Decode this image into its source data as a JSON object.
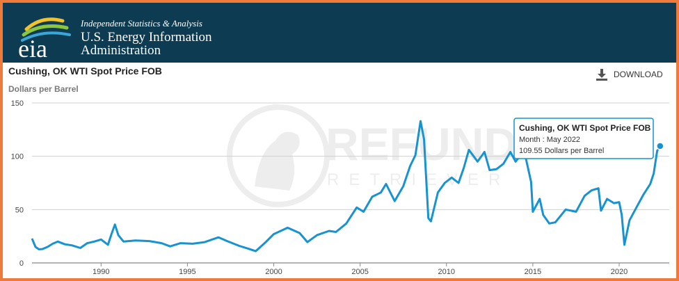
{
  "header": {
    "logo_text": "eia",
    "tagline": "Independent Statistics & Analysis",
    "agency_line1": "U.S. Energy Information",
    "agency_line2": "Administration",
    "bg_color": "#0d3b52"
  },
  "download": {
    "label": "DOWNLOAD",
    "icon": "download-icon"
  },
  "watermark": {
    "line1": "REFUND",
    "line2": "RETRIEVER"
  },
  "tooltip": {
    "series": "Cushing, OK WTI Spot Price FOB",
    "month": "Month : May 2022",
    "value": "109.55 Dollars per Barrel"
  },
  "chart_data": {
    "type": "line",
    "title": "Cushing, OK WTI Spot Price FOB",
    "ylabel": "Dollars per Barrel",
    "xlim": [
      1986.0,
      2022.9
    ],
    "ylim": [
      0,
      150
    ],
    "yticks": [
      0,
      50,
      100,
      150
    ],
    "xticks": [
      1990,
      1995,
      2000,
      2005,
      2010,
      2015,
      2020
    ],
    "grid": true,
    "line_color": "#1793d1",
    "series": [
      {
        "x": [
          1986.0,
          1986.2,
          1986.4,
          1986.6,
          1986.9,
          1987.2,
          1987.5,
          1987.9,
          1988.3,
          1988.8,
          1989.2,
          1989.6,
          1990.0,
          1990.4,
          1990.6,
          1990.8,
          1991.0,
          1991.3,
          1992.0,
          1992.8,
          1993.5,
          1994.0,
          1994.6,
          1995.3,
          1996.0,
          1996.8,
          1997.3,
          1998.0,
          1998.5,
          1998.95,
          1999.5,
          2000.0,
          2000.4,
          2000.8,
          2001.5,
          2001.95,
          2002.5,
          2003.2,
          2003.6,
          2004.2,
          2004.8,
          2005.2,
          2005.7,
          2006.2,
          2006.5,
          2007.0,
          2007.5,
          2007.9,
          2008.2,
          2008.5,
          2008.7,
          2008.95,
          2009.1,
          2009.5,
          2009.9,
          2010.3,
          2010.7,
          2011.0,
          2011.3,
          2011.8,
          2012.2,
          2012.5,
          2012.9,
          2013.3,
          2013.7,
          2014.0,
          2014.5,
          2014.9,
          2015.0,
          2015.4,
          2015.6,
          2015.95,
          2016.3,
          2016.9,
          2017.5,
          2018.0,
          2018.4,
          2018.8,
          2018.95,
          2019.3,
          2019.7,
          2020.0,
          2020.15,
          2020.3,
          2020.6,
          2021.0,
          2021.4,
          2021.8,
          2022.0,
          2022.2,
          2022.37
        ],
        "y": [
          22.9,
          15.0,
          12.8,
          13.0,
          15.0,
          18.0,
          20.0,
          17.5,
          16.5,
          14.0,
          18.5,
          20.0,
          22.0,
          17.0,
          27.0,
          36.0,
          26.0,
          20.0,
          21.0,
          20.5,
          18.5,
          15.5,
          18.5,
          18.0,
          19.5,
          24.0,
          20.5,
          16.0,
          13.5,
          11.0,
          19.0,
          27.0,
          30.0,
          33.0,
          28.0,
          19.5,
          26.0,
          30.0,
          29.0,
          37.0,
          52.0,
          48.0,
          62.0,
          66.0,
          74.0,
          58.0,
          72.0,
          91.0,
          101.0,
          133.0,
          116.0,
          42.0,
          39.0,
          66.0,
          75.0,
          80.0,
          75.0,
          89.0,
          106.0,
          95.0,
          104.0,
          87.0,
          88.0,
          93.0,
          104.0,
          95.0,
          105.0,
          76.0,
          48.0,
          60.0,
          45.0,
          37.0,
          38.0,
          50.0,
          48.0,
          63.0,
          68.0,
          70.0,
          49.0,
          60.0,
          56.0,
          57.0,
          45.0,
          17.0,
          40.0,
          52.0,
          64.0,
          74.0,
          84.0,
          105.0,
          109.55
        ]
      }
    ],
    "highlight": {
      "x": 2022.37,
      "y": 109.55
    }
  }
}
